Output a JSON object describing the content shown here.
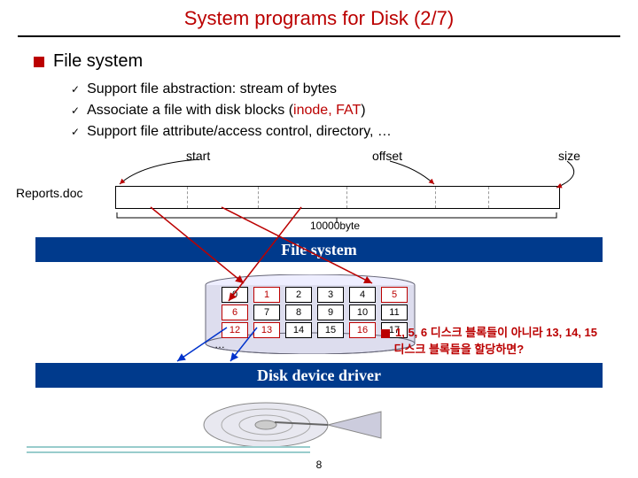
{
  "title": "System programs for Disk (2/7)",
  "section": "File system",
  "bullets": [
    {
      "pre": "Support file abstraction: stream of bytes",
      "red": "",
      "post": ""
    },
    {
      "pre": "Associate a file with disk blocks (",
      "red": "inode, FAT",
      "post": ")"
    },
    {
      "pre": "Support file attribute/access control, directory, …",
      "red": "",
      "post": ""
    }
  ],
  "labels": {
    "start": "start",
    "offset": "offset",
    "size": "size",
    "doc": "Reports.doc",
    "bytes": "10000byte"
  },
  "bars": {
    "fs": "File system",
    "dd": "Disk device driver"
  },
  "grid": {
    "cols": 6,
    "rows": 3,
    "values": [
      [
        "0",
        "1",
        "2",
        "3",
        "4",
        "5"
      ],
      [
        "6",
        "7",
        "8",
        "9",
        "10",
        "11"
      ],
      [
        "12",
        "13",
        "14",
        "15",
        "16",
        "17"
      ]
    ],
    "ellipsis": "…",
    "highlight": [
      [
        0,
        1
      ],
      [
        0,
        5
      ],
      [
        1,
        0
      ],
      [
        2,
        0
      ],
      [
        2,
        1
      ],
      [
        2,
        4
      ]
    ],
    "colors": {
      "normal": "#000",
      "hi": "#b00"
    }
  },
  "note": {
    "l1": "1, 5, 6 디스크 블록들이 아니라 13, 14, 15",
    "l2": "디스크 블록들을 할당하면?"
  },
  "page": "8",
  "filebar": {
    "segments": [
      0,
      80,
      160,
      260,
      360,
      420,
      500
    ],
    "dash_color": "#999"
  },
  "arrows": {
    "color_blue": "#0033cc",
    "color_red": "#b00"
  },
  "style": {
    "title_color": "#b00",
    "bar_bg": "#003a8c",
    "bar_fg": "#ffffff",
    "hr": "#000",
    "footer_stripe": "#9cc"
  }
}
